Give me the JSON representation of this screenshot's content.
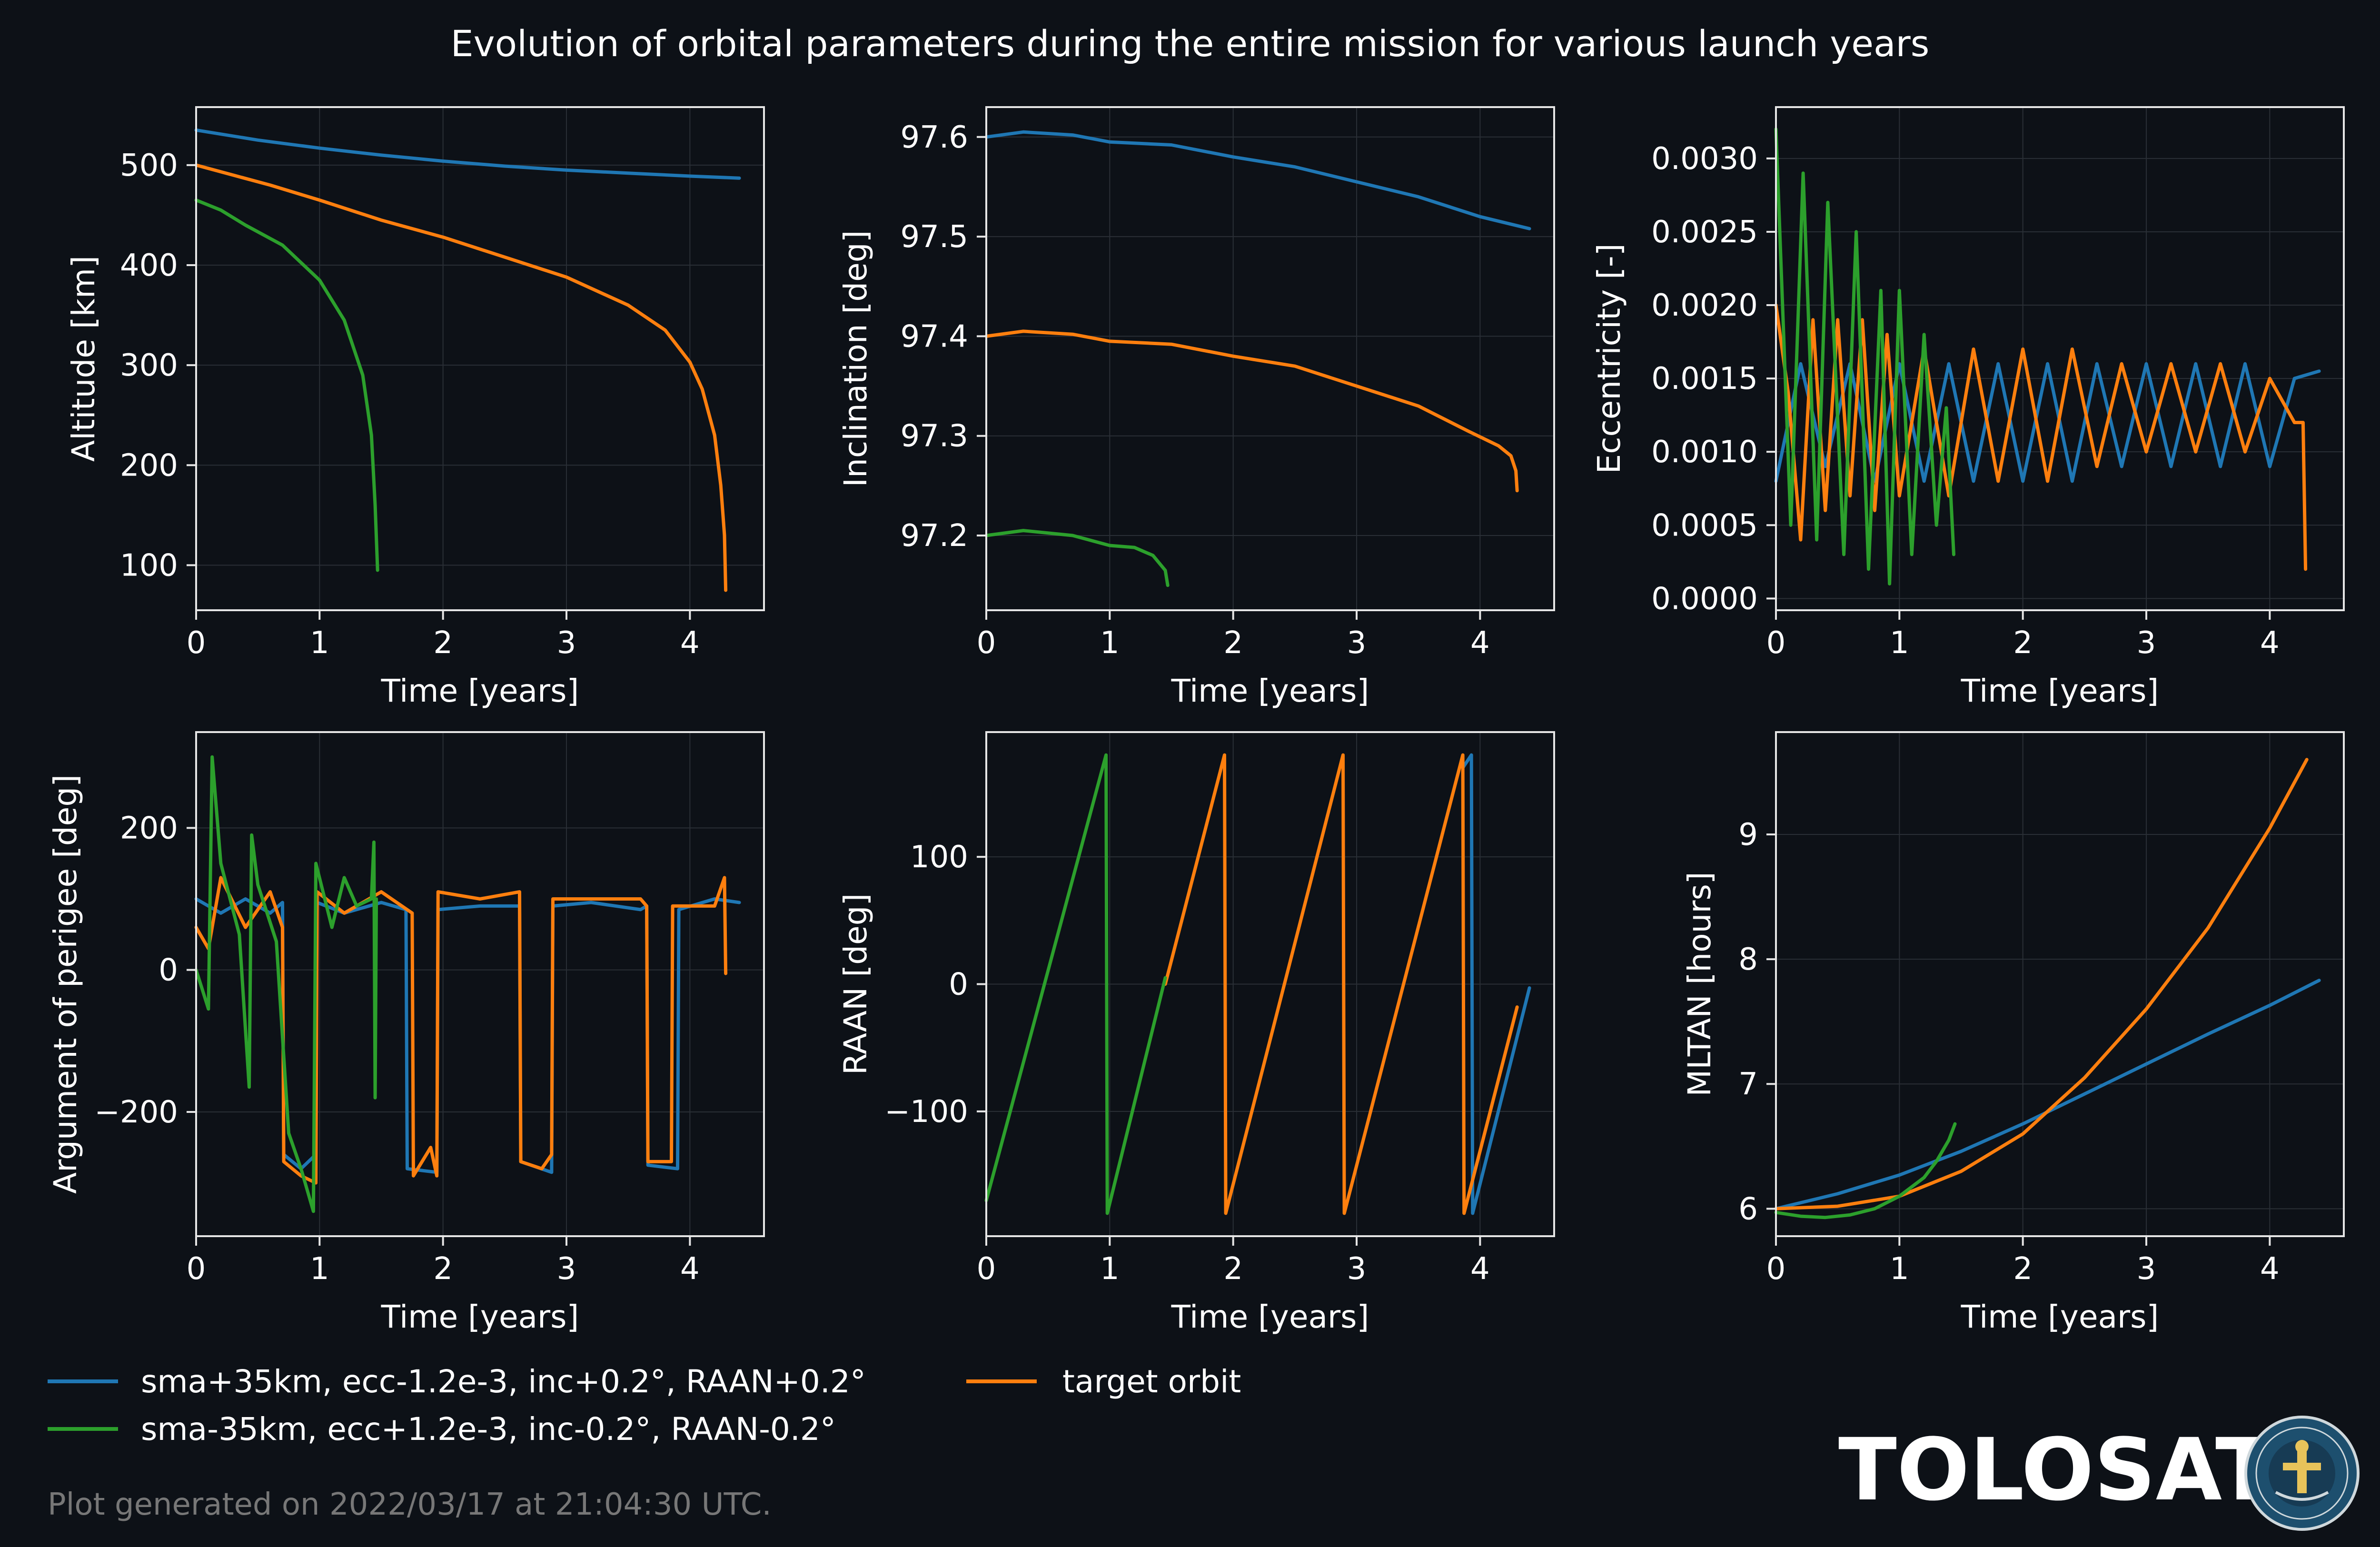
{
  "suptitle": "Evolution of orbital parameters during the entire mission for various launch years",
  "footer": "Plot generated on 2022/03/17 at 21:04:30 UTC.",
  "brand": {
    "name": "TOLOSAT",
    "seal_text": "ASTRE CC SUPAERO · TOLOSAT"
  },
  "colors": {
    "background": "#0d1117",
    "axes": "#e6e6e6",
    "grid": "#2a2f36",
    "blue": "#1f77b4",
    "orange": "#ff7f0e",
    "green": "#2ca02c",
    "footer": "#777777"
  },
  "legend": {
    "placement": "bottom-left, two columns",
    "entries": [
      {
        "label": "sma+35km, ecc-1.2e-3, inc+0.2°, RAAN+0.2°",
        "color": "#1f77b4"
      },
      {
        "label": "sma-35km, ecc+1.2e-3, inc-0.2°, RAAN-0.2°",
        "color": "#2ca02c"
      },
      {
        "label": "target orbit",
        "color": "#ff7f0e"
      }
    ]
  },
  "chart_data": [
    {
      "type": "line",
      "title": "",
      "xlabel": "Time [years]",
      "ylabel": "Altitude [km]",
      "xlim": [
        0,
        4.6
      ],
      "ylim": [
        55,
        558
      ],
      "grid": true,
      "xticks": [
        0,
        1,
        2,
        3,
        4
      ],
      "yticks": [
        100,
        200,
        300,
        400,
        500
      ],
      "series": [
        {
          "color": "#1f77b4",
          "x": [
            0,
            0.5,
            1,
            1.5,
            2,
            2.5,
            3,
            3.5,
            4,
            4.4
          ],
          "y": [
            535,
            525,
            517,
            510,
            504,
            499,
            495,
            492,
            489,
            487
          ]
        },
        {
          "color": "#ff7f0e",
          "x": [
            0,
            0.3,
            0.6,
            1,
            1.5,
            2,
            2.5,
            3,
            3.5,
            3.8,
            4.0,
            4.1,
            4.2,
            4.25,
            4.28,
            4.29
          ],
          "y": [
            500,
            490,
            480,
            465,
            445,
            428,
            408,
            388,
            360,
            335,
            303,
            276,
            230,
            180,
            130,
            75
          ]
        },
        {
          "color": "#2ca02c",
          "x": [
            0,
            0.2,
            0.4,
            0.7,
            1.0,
            1.2,
            1.35,
            1.42,
            1.45,
            1.47
          ],
          "y": [
            465,
            455,
            440,
            420,
            385,
            345,
            290,
            230,
            160,
            95
          ]
        }
      ]
    },
    {
      "type": "line",
      "title": "",
      "xlabel": "Time [years]",
      "ylabel": "Inclination [deg]",
      "xlim": [
        0,
        4.6
      ],
      "ylim": [
        97.125,
        97.63
      ],
      "grid": true,
      "xticks": [
        0,
        1,
        2,
        3,
        4
      ],
      "yticks": [
        97.2,
        97.3,
        97.4,
        97.5,
        97.6
      ],
      "series": [
        {
          "color": "#1f77b4",
          "x": [
            0,
            0.3,
            0.7,
            1.0,
            1.5,
            2.0,
            2.5,
            3.0,
            3.5,
            4.0,
            4.4
          ],
          "y": [
            97.6,
            97.605,
            97.602,
            97.595,
            97.592,
            97.58,
            97.57,
            97.555,
            97.54,
            97.52,
            97.508
          ]
        },
        {
          "color": "#ff7f0e",
          "x": [
            0,
            0.3,
            0.7,
            1.0,
            1.5,
            2.0,
            2.5,
            3.0,
            3.5,
            3.9,
            4.15,
            4.25,
            4.29,
            4.3
          ],
          "y": [
            97.4,
            97.405,
            97.402,
            97.395,
            97.392,
            97.38,
            97.37,
            97.35,
            97.33,
            97.305,
            97.29,
            97.28,
            97.265,
            97.245
          ]
        },
        {
          "color": "#2ca02c",
          "x": [
            0,
            0.3,
            0.7,
            1.0,
            1.2,
            1.35,
            1.45,
            1.47
          ],
          "y": [
            97.2,
            97.205,
            97.2,
            97.19,
            97.188,
            97.18,
            97.165,
            97.15
          ]
        }
      ]
    },
    {
      "type": "line",
      "title": "",
      "xlabel": "Time [years]",
      "ylabel": "Eccentricity [-]",
      "xlim": [
        0,
        4.6
      ],
      "ylim": [
        -8e-05,
        0.00335
      ],
      "grid": true,
      "xticks": [
        0,
        1,
        2,
        3,
        4
      ],
      "yticks": [
        0.0,
        0.0005,
        0.001,
        0.0015,
        0.002,
        0.0025,
        0.003
      ],
      "ytick_labels": [
        "0.0000",
        "0.0005",
        "0.0010",
        "0.0015",
        "0.0020",
        "0.0025",
        "0.0030"
      ],
      "series": [
        {
          "color": "#1f77b4",
          "x": [
            0,
            0.2,
            0.4,
            0.6,
            0.8,
            1.0,
            1.2,
            1.4,
            1.6,
            1.8,
            2.0,
            2.2,
            2.4,
            2.6,
            2.8,
            3.0,
            3.2,
            3.4,
            3.6,
            3.8,
            4.0,
            4.2,
            4.4
          ],
          "y": [
            0.0008,
            0.0016,
            0.0009,
            0.0016,
            0.0008,
            0.0016,
            0.0008,
            0.0016,
            0.0008,
            0.0016,
            0.0008,
            0.0016,
            0.0008,
            0.0016,
            0.0009,
            0.0016,
            0.0009,
            0.0016,
            0.0009,
            0.0016,
            0.0009,
            0.0015,
            0.00155
          ]
        },
        {
          "color": "#ff7f0e",
          "x": [
            0,
            0.1,
            0.2,
            0.3,
            0.4,
            0.5,
            0.6,
            0.7,
            0.8,
            0.9,
            1.0,
            1.2,
            1.4,
            1.6,
            1.8,
            2.0,
            2.2,
            2.4,
            2.6,
            2.8,
            3.0,
            3.2,
            3.4,
            3.6,
            3.8,
            4.0,
            4.2,
            4.27,
            4.29
          ],
          "y": [
            0.002,
            0.0014,
            0.0004,
            0.0019,
            0.0006,
            0.0019,
            0.0007,
            0.0019,
            0.0006,
            0.0018,
            0.0007,
            0.0017,
            0.0007,
            0.0017,
            0.0008,
            0.0017,
            0.0008,
            0.0017,
            0.0009,
            0.0016,
            0.001,
            0.0016,
            0.001,
            0.0016,
            0.001,
            0.0015,
            0.0012,
            0.0012,
            0.0002
          ]
        },
        {
          "color": "#2ca02c",
          "x": [
            0,
            0.12,
            0.22,
            0.33,
            0.42,
            0.55,
            0.65,
            0.75,
            0.85,
            0.92,
            1.0,
            1.1,
            1.2,
            1.3,
            1.38,
            1.44
          ],
          "y": [
            0.0032,
            0.0005,
            0.0029,
            0.0004,
            0.0027,
            0.0003,
            0.0025,
            0.0002,
            0.0021,
            0.0001,
            0.0021,
            0.0003,
            0.0018,
            0.0005,
            0.0013,
            0.0003
          ]
        }
      ]
    },
    {
      "type": "line",
      "title": "",
      "xlabel": "Time [years]",
      "ylabel": "Argument of perigee [deg]",
      "xlim": [
        0,
        4.6
      ],
      "ylim": [
        -375,
        335
      ],
      "grid": true,
      "xticks": [
        0,
        1,
        2,
        3,
        4
      ],
      "yticks": [
        -200,
        0,
        200
      ],
      "ytick_labels": [
        "−200",
        "0",
        "200"
      ],
      "series": [
        {
          "color": "#1f77b4",
          "x": [
            0,
            0.2,
            0.4,
            0.6,
            0.7,
            0.71,
            0.85,
            0.97,
            0.98,
            1.2,
            1.5,
            1.7,
            1.71,
            1.95,
            1.96,
            2.3,
            2.62,
            2.63,
            2.88,
            2.89,
            3.2,
            3.6,
            3.65,
            3.66,
            3.9,
            3.91,
            4.2,
            4.4
          ],
          "y": [
            100,
            80,
            100,
            80,
            95,
            -260,
            -280,
            -260,
            95,
            80,
            95,
            85,
            -280,
            -285,
            85,
            90,
            90,
            -270,
            -285,
            90,
            95,
            85,
            90,
            -275,
            -280,
            85,
            100,
            95
          ]
        },
        {
          "color": "#ff7f0e",
          "x": [
            0,
            0.1,
            0.2,
            0.4,
            0.6,
            0.7,
            0.71,
            0.85,
            0.97,
            0.98,
            1.2,
            1.5,
            1.75,
            1.76,
            1.9,
            1.95,
            1.96,
            2.3,
            2.62,
            2.63,
            2.8,
            2.88,
            2.89,
            3.2,
            3.6,
            3.65,
            3.66,
            3.85,
            3.86,
            4.2,
            4.28,
            4.29
          ],
          "y": [
            60,
            30,
            130,
            60,
            110,
            60,
            -270,
            -290,
            -300,
            110,
            80,
            110,
            80,
            -290,
            -250,
            -290,
            110,
            100,
            110,
            -270,
            -280,
            -260,
            100,
            100,
            100,
            90,
            -270,
            -270,
            90,
            90,
            130,
            -5
          ]
        },
        {
          "color": "#2ca02c",
          "x": [
            0,
            0.1,
            0.13,
            0.2,
            0.35,
            0.43,
            0.45,
            0.5,
            0.65,
            0.75,
            0.85,
            0.95,
            0.97,
            1.1,
            1.2,
            1.3,
            1.42,
            1.44,
            1.45,
            1.46
          ],
          "y": [
            0,
            -55,
            300,
            150,
            50,
            -165,
            190,
            120,
            40,
            -230,
            -280,
            -340,
            150,
            60,
            130,
            90,
            100,
            180,
            -180,
            100
          ]
        }
      ]
    },
    {
      "type": "line",
      "title": "",
      "xlabel": "Time [years]",
      "ylabel": "RAAN [deg]",
      "xlim": [
        0,
        4.6
      ],
      "ylim": [
        -198,
        198
      ],
      "grid": true,
      "xticks": [
        0,
        1,
        2,
        3,
        4
      ],
      "yticks": [
        -100,
        0,
        100
      ],
      "ytick_labels": [
        "−100",
        "0",
        "100"
      ],
      "series": [
        {
          "color": "#1f77b4",
          "x": [
            3.86,
            3.93,
            3.94,
            4.4
          ],
          "y": [
            170,
            180,
            -180,
            -3
          ]
        },
        {
          "color": "#ff7f0e",
          "x": [
            1.45,
            1.93,
            1.94,
            2.89,
            2.9,
            3.86,
            3.87,
            4.3
          ],
          "y": [
            0,
            180,
            -180,
            180,
            -180,
            180,
            -180,
            -18
          ]
        },
        {
          "color": "#2ca02c",
          "x": [
            0,
            0.97,
            0.98,
            1.45
          ],
          "y": [
            -170,
            180,
            -180,
            5
          ]
        }
      ]
    },
    {
      "type": "line",
      "title": "",
      "xlabel": "Time [years]",
      "ylabel": "MLTAN [hours]",
      "xlim": [
        0,
        4.6
      ],
      "ylim": [
        5.78,
        9.82
      ],
      "grid": true,
      "xticks": [
        0,
        1,
        2,
        3,
        4
      ],
      "yticks": [
        6,
        7,
        8,
        9
      ],
      "series": [
        {
          "color": "#1f77b4",
          "x": [
            0,
            0.5,
            1,
            1.5,
            2,
            2.5,
            3,
            3.5,
            4,
            4.4
          ],
          "y": [
            6.0,
            6.12,
            6.27,
            6.46,
            6.68,
            6.92,
            7.16,
            7.4,
            7.63,
            7.83
          ]
        },
        {
          "color": "#ff7f0e",
          "x": [
            0,
            0.5,
            1,
            1.5,
            2,
            2.5,
            3,
            3.5,
            4,
            4.3
          ],
          "y": [
            6.0,
            6.02,
            6.1,
            6.3,
            6.6,
            7.05,
            7.6,
            8.25,
            9.05,
            9.6
          ]
        },
        {
          "color": "#2ca02c",
          "x": [
            0,
            0.2,
            0.4,
            0.6,
            0.8,
            1.0,
            1.2,
            1.3,
            1.4,
            1.45
          ],
          "y": [
            5.97,
            5.94,
            5.93,
            5.95,
            6.0,
            6.1,
            6.25,
            6.38,
            6.55,
            6.68
          ]
        }
      ]
    }
  ]
}
